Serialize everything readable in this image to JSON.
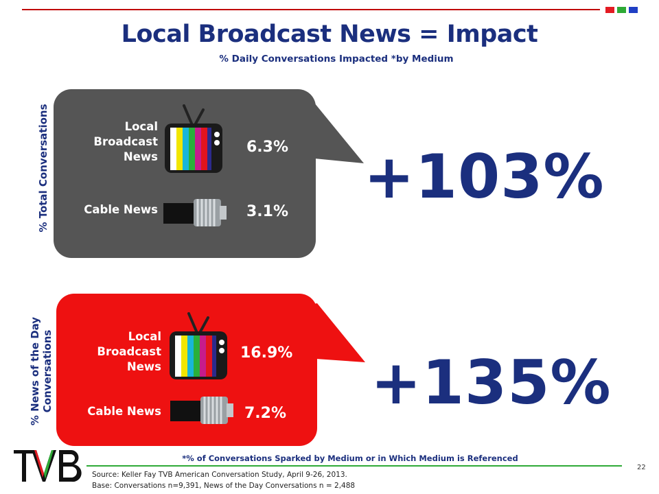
{
  "header": {
    "title": "Local Broadcast News = Impact",
    "subtitle": "% Daily Conversations Impacted *by Medium",
    "squares": [
      "#e31b23",
      "#2eaa36",
      "#1f3fc4"
    ]
  },
  "colors": {
    "navy": "#1b2f7e",
    "gray_bubble": "#555555",
    "red_bubble": "#ee1111"
  },
  "panel_top": {
    "axis_label": "% Total Conversations",
    "items": [
      {
        "label": "Local Broadcast News",
        "value": "6.3%",
        "icon": "tv-icon"
      },
      {
        "label": "Cable News",
        "value": "3.1%",
        "icon": "cable-connector-icon"
      }
    ],
    "lift": "+103%"
  },
  "panel_bottom": {
    "axis_label_line1": "% News of the Day",
    "axis_label_line2": "Conversations",
    "items": [
      {
        "label": "Local Broadcast News",
        "value": "16.9%",
        "icon": "tv-icon"
      },
      {
        "label": "Cable News",
        "value": "7.2%",
        "icon": "cable-connector-icon"
      }
    ],
    "lift": "+135%"
  },
  "footer": {
    "footnote": "*% of Conversations Sparked by Medium or in Which Medium is Referenced",
    "source_line1": "Source: Keller Fay TVB American Conversation Study, April 9-26, 2013.",
    "source_line2": "Base: Conversations n=9,391, News of the Day Conversations n = 2,488",
    "page_number": "22",
    "logo_text": "TVB"
  }
}
